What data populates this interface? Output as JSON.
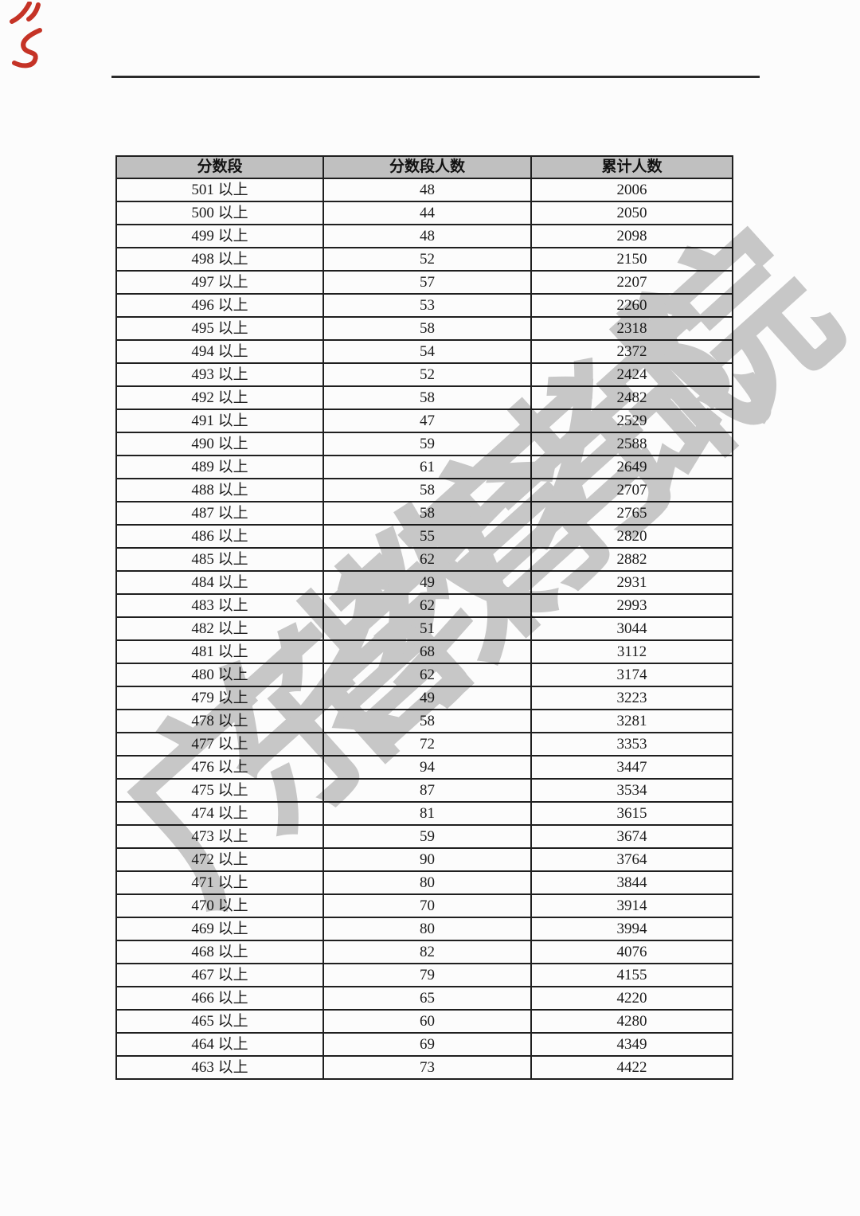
{
  "document": {
    "watermark_text": "广东省教育考试院"
  },
  "table": {
    "headers": [
      "分数段",
      "分数段人数",
      "累计人数"
    ],
    "rows": [
      [
        "501 以上",
        "48",
        "2006"
      ],
      [
        "500 以上",
        "44",
        "2050"
      ],
      [
        "499 以上",
        "48",
        "2098"
      ],
      [
        "498 以上",
        "52",
        "2150"
      ],
      [
        "497 以上",
        "57",
        "2207"
      ],
      [
        "496 以上",
        "53",
        "2260"
      ],
      [
        "495 以上",
        "58",
        "2318"
      ],
      [
        "494 以上",
        "54",
        "2372"
      ],
      [
        "493 以上",
        "52",
        "2424"
      ],
      [
        "492 以上",
        "58",
        "2482"
      ],
      [
        "491 以上",
        "47",
        "2529"
      ],
      [
        "490 以上",
        "59",
        "2588"
      ],
      [
        "489 以上",
        "61",
        "2649"
      ],
      [
        "488 以上",
        "58",
        "2707"
      ],
      [
        "487 以上",
        "58",
        "2765"
      ],
      [
        "486 以上",
        "55",
        "2820"
      ],
      [
        "485 以上",
        "62",
        "2882"
      ],
      [
        "484 以上",
        "49",
        "2931"
      ],
      [
        "483 以上",
        "62",
        "2993"
      ],
      [
        "482 以上",
        "51",
        "3044"
      ],
      [
        "481 以上",
        "68",
        "3112"
      ],
      [
        "480 以上",
        "62",
        "3174"
      ],
      [
        "479 以上",
        "49",
        "3223"
      ],
      [
        "478 以上",
        "58",
        "3281"
      ],
      [
        "477 以上",
        "72",
        "3353"
      ],
      [
        "476 以上",
        "94",
        "3447"
      ],
      [
        "475 以上",
        "87",
        "3534"
      ],
      [
        "474 以上",
        "81",
        "3615"
      ],
      [
        "473 以上",
        "59",
        "3674"
      ],
      [
        "472 以上",
        "90",
        "3764"
      ],
      [
        "471 以上",
        "80",
        "3844"
      ],
      [
        "470 以上",
        "70",
        "3914"
      ],
      [
        "469 以上",
        "80",
        "3994"
      ],
      [
        "468 以上",
        "82",
        "4076"
      ],
      [
        "467 以上",
        "79",
        "4155"
      ],
      [
        "466 以上",
        "65",
        "4220"
      ],
      [
        "465 以上",
        "60",
        "4280"
      ],
      [
        "464 以上",
        "69",
        "4349"
      ],
      [
        "463 以上",
        "73",
        "4422"
      ]
    ]
  },
  "colors": {
    "page_bg": "#fcfcfc",
    "header_bg": "#c0c0c0",
    "table_border": "#1f1f1f",
    "text": "#1c1c1c",
    "rule": "#2b2b2b",
    "watermark": "#c4c4c4",
    "red_marks": "#c53326"
  }
}
